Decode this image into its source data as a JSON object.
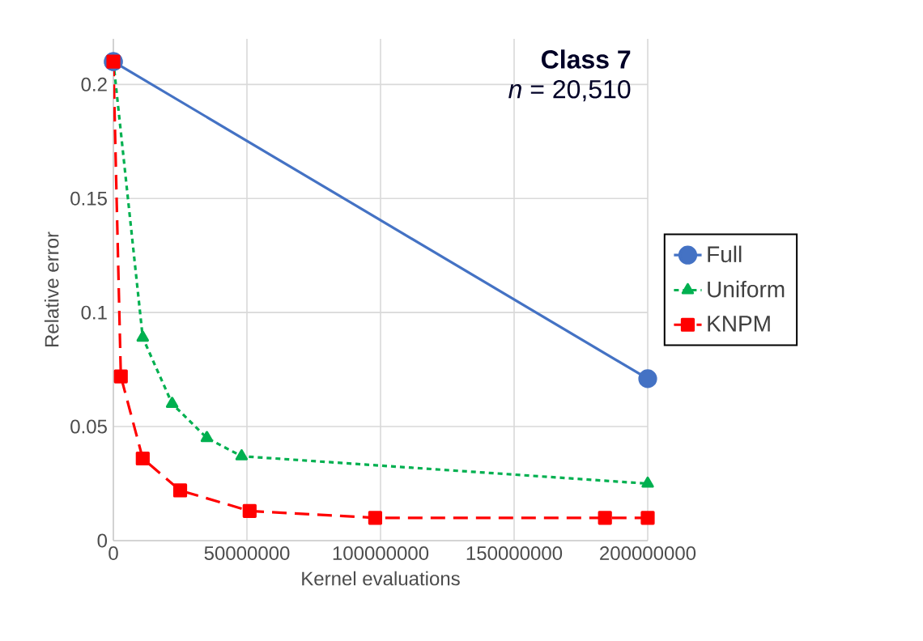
{
  "chart_data": {
    "type": "line",
    "title": "Class 7",
    "subtitle": "*n* = 20,510",
    "xlabel": "Kernel evaluations",
    "ylabel": "Relative error",
    "xlim": [
      0,
      200000000
    ],
    "xticks": [
      0,
      50000000,
      100000000,
      150000000,
      200000000
    ],
    "ylim": [
      0,
      0.22
    ],
    "yticks": [
      0,
      0.05,
      0.1,
      0.15,
      0.2
    ],
    "grid": true,
    "legend": "right",
    "series": [
      {
        "name": "Full",
        "color": "#4472c4",
        "marker": "circle",
        "line_style": "solid",
        "x": [
          0,
          200000000
        ],
        "values": [
          0.21,
          0.071
        ]
      },
      {
        "name": "Uniform",
        "color": "#00b050",
        "marker": "triangle",
        "line_style": "dotted",
        "x": [
          0,
          11000000,
          22000000,
          35000000,
          48000000,
          200000000
        ],
        "values": [
          0.21,
          0.089,
          0.06,
          0.045,
          0.037,
          0.025
        ]
      },
      {
        "name": "KNPM",
        "color": "#ff0000",
        "marker": "square",
        "line_style": "dashed",
        "x": [
          0,
          2800000,
          11000000,
          25000000,
          51000000,
          98000000,
          184000000,
          200000000
        ],
        "values": [
          0.21,
          0.072,
          0.036,
          0.022,
          0.013,
          0.01,
          0.01,
          0.01
        ]
      }
    ]
  }
}
